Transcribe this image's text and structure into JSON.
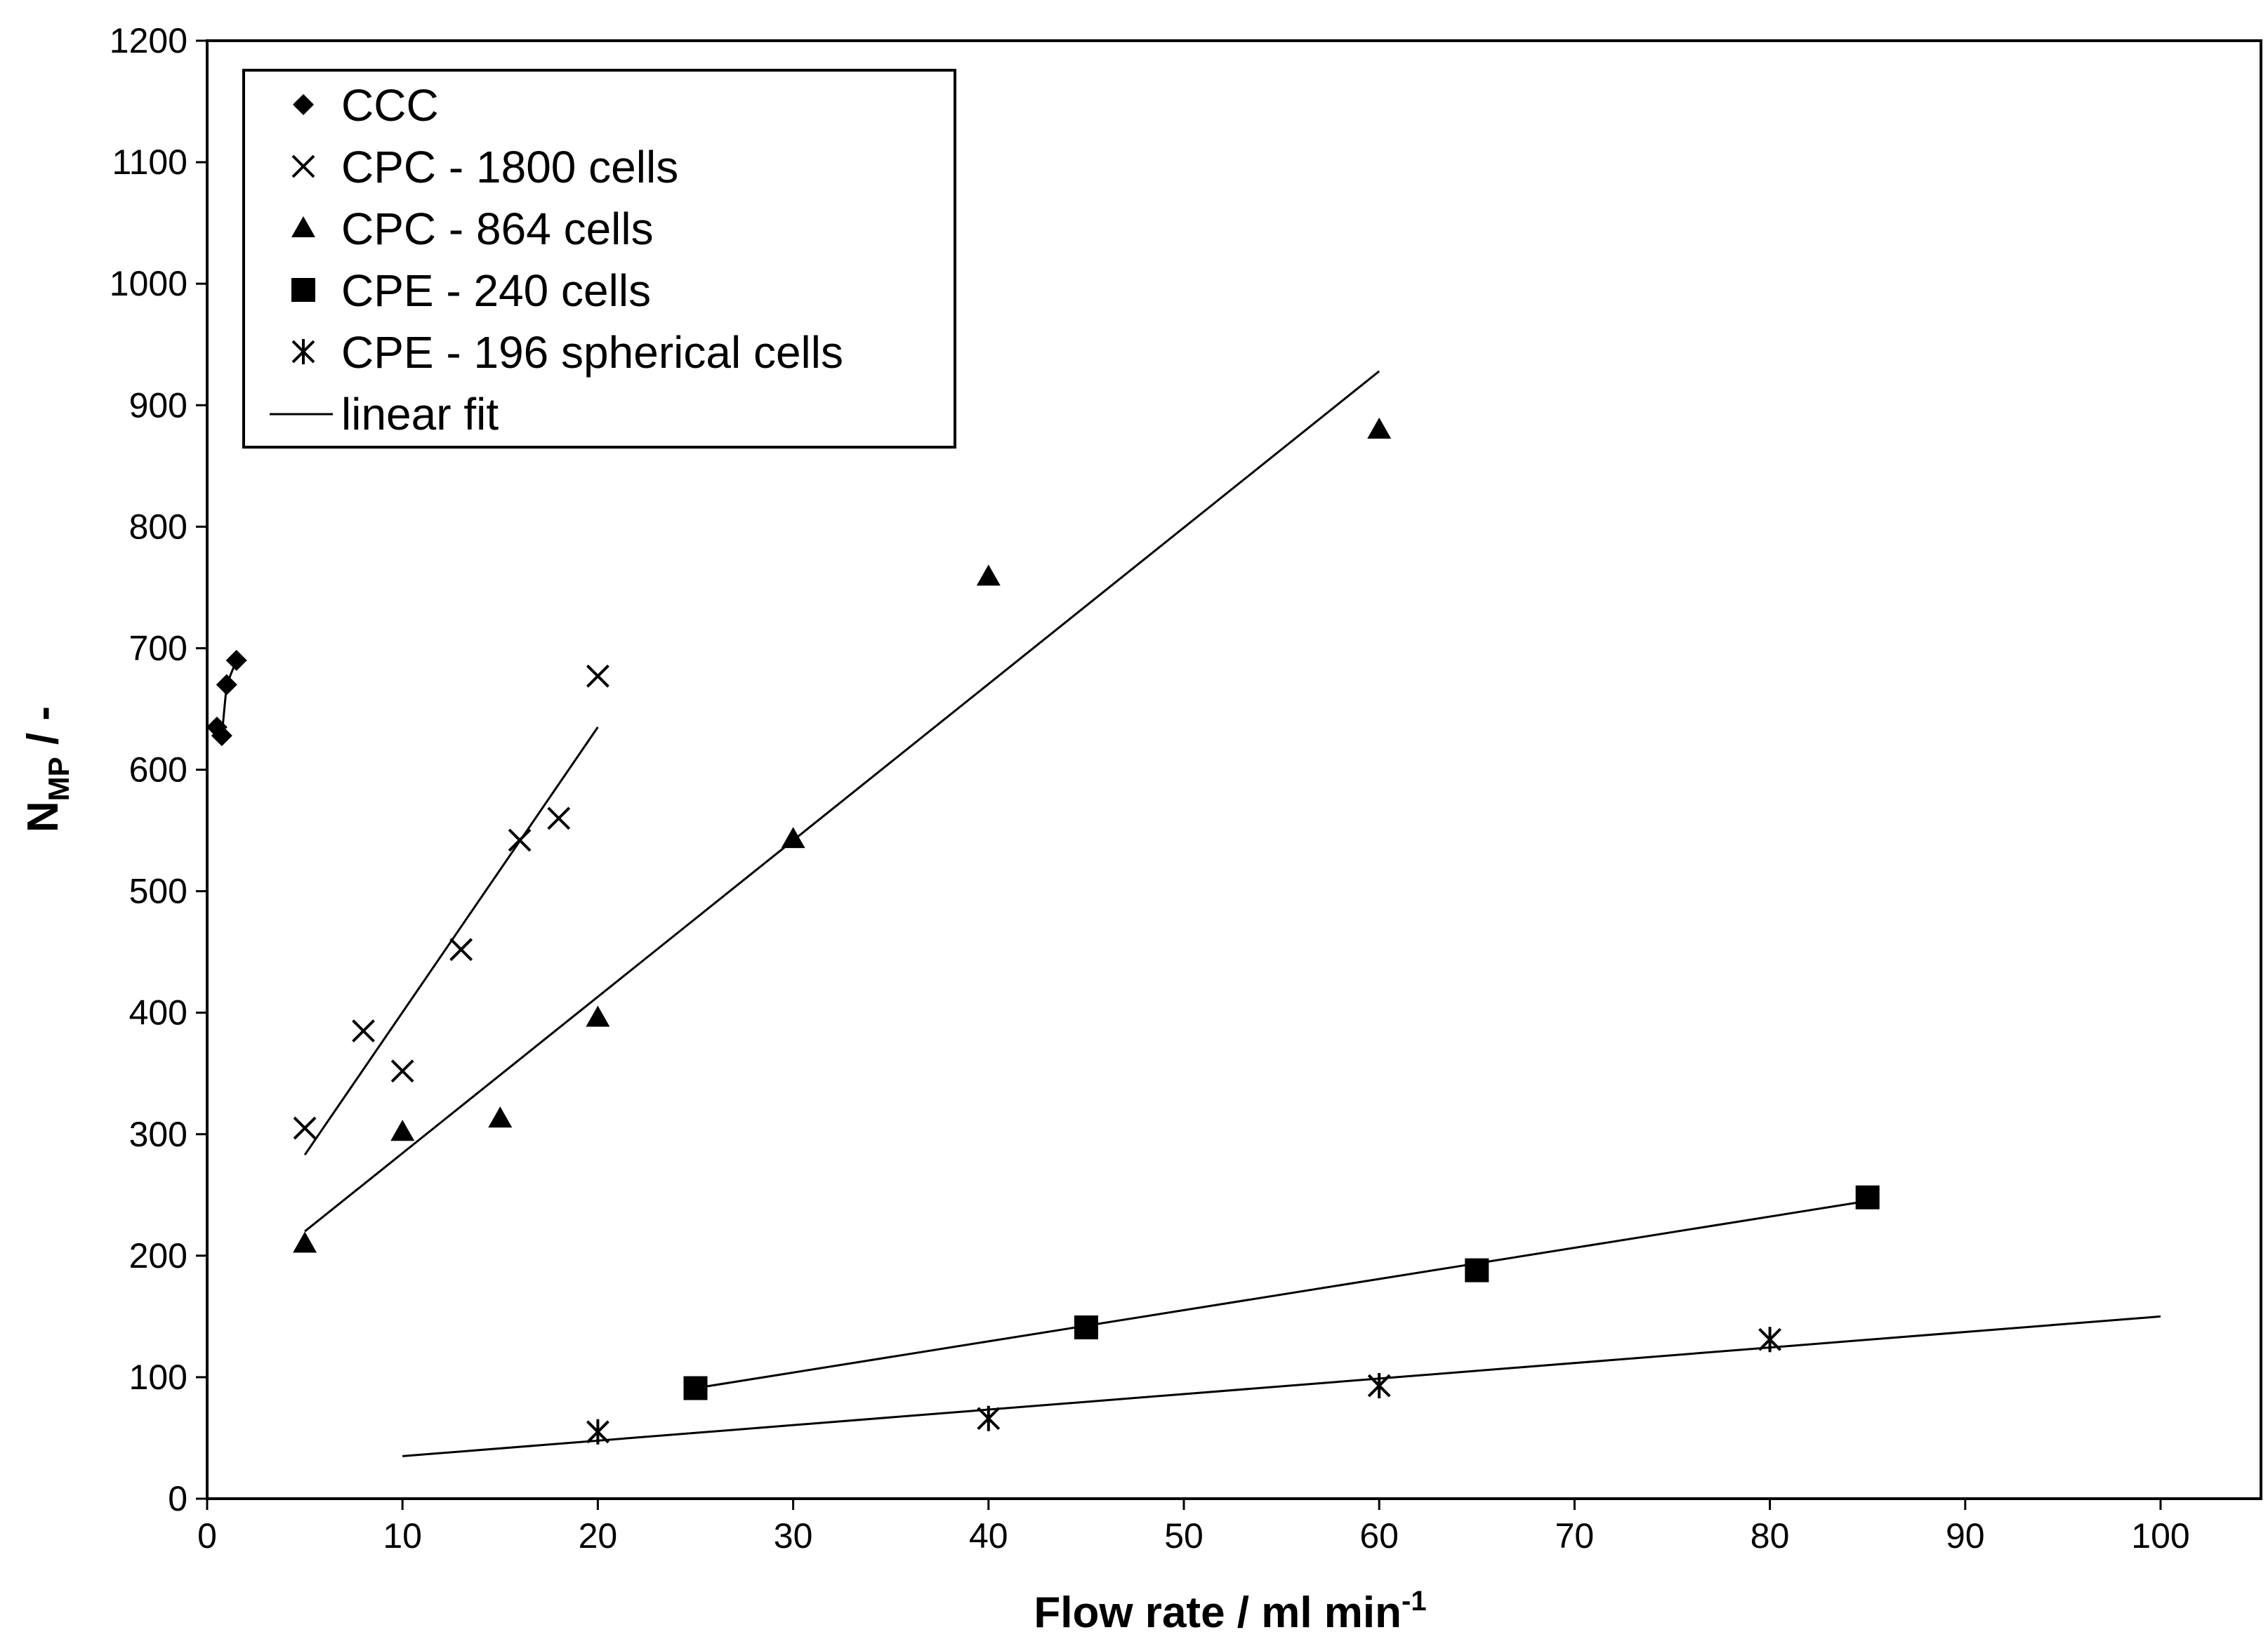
{
  "chart_data": {
    "type": "scatter",
    "title": "",
    "xlabel": "Flow rate / ml min",
    "xlabel_sup": "-1",
    "ylabel": "N",
    "ylabel_sub": "MP",
    "ylabel_suffix": " / -",
    "xlim": [
      0,
      105
    ],
    "ylim": [
      0,
      1200
    ],
    "x_ticks": [
      0,
      10,
      20,
      30,
      40,
      50,
      60,
      70,
      80,
      90,
      100
    ],
    "y_ticks": [
      0,
      100,
      200,
      300,
      400,
      500,
      600,
      700,
      800,
      900,
      1000,
      1100,
      1200
    ],
    "grid": false,
    "legend_position": "top-left",
    "series": [
      {
        "name": "CCC",
        "marker": "diamond",
        "points": [
          [
            0.5,
            635
          ],
          [
            0.75,
            628
          ],
          [
            1.0,
            670
          ],
          [
            1.5,
            690
          ]
        ],
        "fit": [
          [
            0.5,
            635
          ],
          [
            0.75,
            628
          ],
          [
            1.0,
            670
          ],
          [
            1.5,
            690
          ]
        ]
      },
      {
        "name": "CPC - 1800 cells",
        "marker": "x",
        "points": [
          [
            5,
            305
          ],
          [
            8,
            385
          ],
          [
            10,
            352
          ],
          [
            13,
            452
          ],
          [
            16,
            542
          ],
          [
            18,
            560
          ],
          [
            20,
            677
          ]
        ],
        "fit": [
          [
            5,
            283
          ],
          [
            20,
            635
          ]
        ]
      },
      {
        "name": "CPC - 864 cells",
        "marker": "triangle",
        "points": [
          [
            5,
            210
          ],
          [
            10,
            302
          ],
          [
            15,
            313
          ],
          [
            20,
            396
          ],
          [
            30,
            543
          ],
          [
            40,
            759
          ],
          [
            60,
            880
          ]
        ],
        "fit": [
          [
            5,
            220
          ],
          [
            60,
            928
          ]
        ]
      },
      {
        "name": "CPE - 240 cells",
        "marker": "square",
        "points": [
          [
            25,
            91
          ],
          [
            45,
            141
          ],
          [
            65,
            188
          ],
          [
            85,
            248
          ]
        ],
        "fit": [
          [
            25,
            91
          ],
          [
            85,
            245
          ]
        ]
      },
      {
        "name": "CPE - 196 spherical cells",
        "marker": "asterisk",
        "points": [
          [
            20,
            55
          ],
          [
            40,
            66
          ],
          [
            60,
            93
          ],
          [
            80,
            131
          ]
        ],
        "fit": [
          [
            10,
            35
          ],
          [
            100,
            150
          ]
        ]
      }
    ],
    "legend_fit_label": "linear fit"
  }
}
